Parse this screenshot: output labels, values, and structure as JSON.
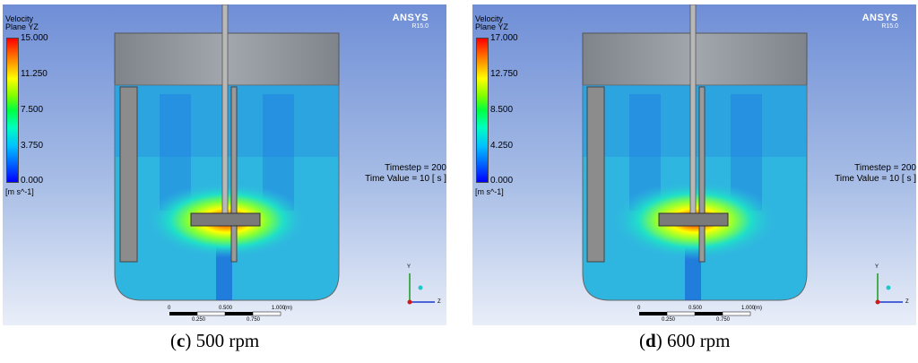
{
  "panels": [
    {
      "id": "c",
      "legend": {
        "title_line1": "Velocity",
        "title_line2": "Plane YZ",
        "ticks": [
          "15.000",
          "11.250",
          "7.500",
          "3.750",
          "0.000"
        ],
        "unit": "[m s^-1]"
      },
      "brand": {
        "name": "ANSYS",
        "version": "R15.0"
      },
      "timestep": "Timestep = 200",
      "time_value": "Time Value = 10 [ s ]",
      "scale": {
        "top_labels": [
          "0",
          "0.500",
          "1.000"
        ],
        "unit": "(m)",
        "bottom_labels": [
          "0.250",
          "0.750"
        ]
      },
      "axes": {
        "y": "Y",
        "z": "Z"
      },
      "caption": {
        "letter": "c",
        "text": " 500 rpm"
      }
    },
    {
      "id": "d",
      "legend": {
        "title_line1": "Velocity",
        "title_line2": "Plane YZ",
        "ticks": [
          "17.000",
          "12.750",
          "8.500",
          "4.250",
          "0.000"
        ],
        "unit": "[m s^-1]"
      },
      "brand": {
        "name": "ANSYS",
        "version": "R15.0"
      },
      "timestep": "Timestep = 200",
      "time_value": "Time Value = 10 [ s ]",
      "scale": {
        "top_labels": [
          "0",
          "0.500",
          "1.000"
        ],
        "unit": "(m)",
        "bottom_labels": [
          "0.250",
          "0.750"
        ]
      },
      "axes": {
        "y": "Y",
        "z": "Z"
      },
      "caption": {
        "letter": "d",
        "text": " 600 rpm"
      }
    }
  ],
  "colors": {
    "background_top": "#6f8ed6",
    "tank_fluid": "#2fb6e0",
    "lid": "#8a8f96",
    "baffle": "#8c8c8c",
    "hot": "#ff2a00"
  }
}
